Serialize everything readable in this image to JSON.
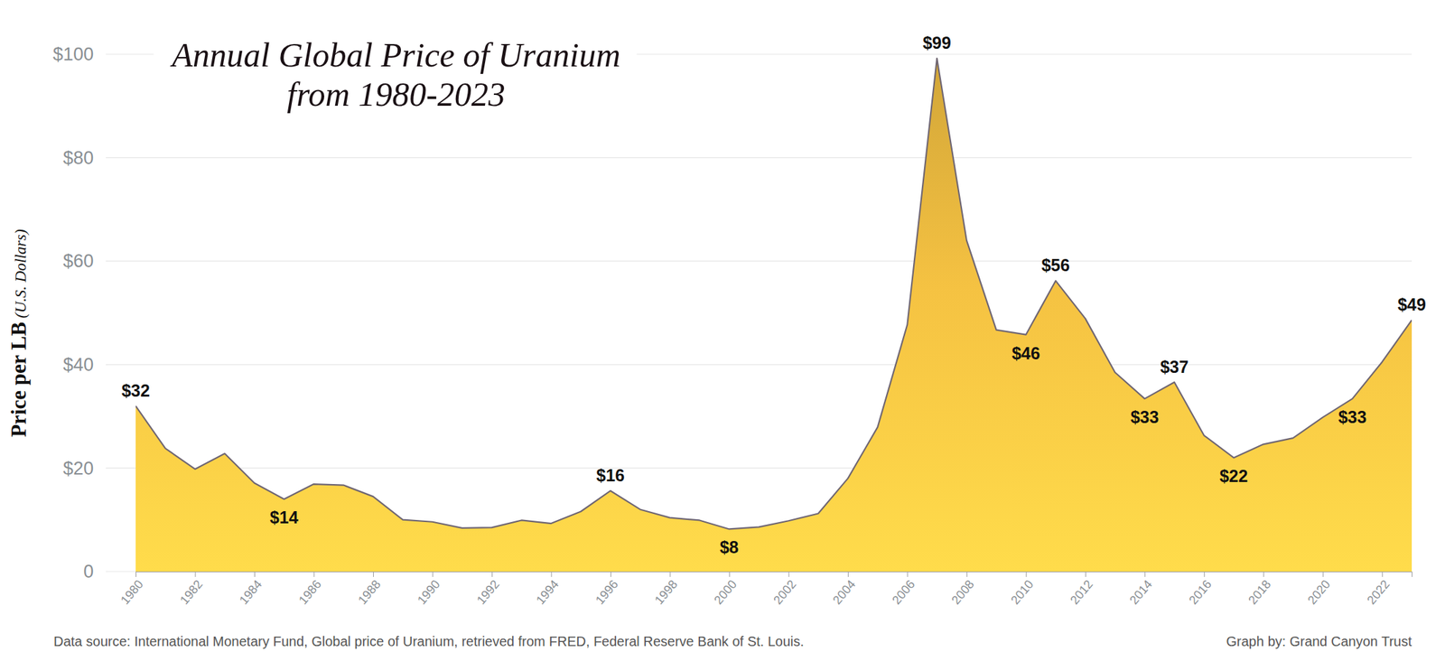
{
  "chart_data": {
    "type": "area",
    "title": "Annual Global Price of Uranium from 1980-2023",
    "ylabel": "Price per LB (U.S. Dollars)",
    "source": "Data source: International Monetary Fund, Global price of Uranium, retrieved from FRED, Federal Reserve Bank of St. Louis.",
    "credit": "Graph by: Grand Canyon Trust",
    "x": [
      1980,
      1981,
      1982,
      1983,
      1984,
      1985,
      1986,
      1987,
      1988,
      1989,
      1990,
      1991,
      1992,
      1993,
      1994,
      1995,
      1996,
      1997,
      1998,
      1999,
      2000,
      2001,
      2002,
      2003,
      2004,
      2005,
      2006,
      2007,
      2008,
      2009,
      2010,
      2011,
      2012,
      2013,
      2014,
      2015,
      2016,
      2017,
      2018,
      2019,
      2020,
      2021,
      2022,
      2023
    ],
    "values": [
      32,
      23.8,
      19.8,
      22.8,
      17.1,
      14,
      16.9,
      16.7,
      14.5,
      10,
      9.6,
      8.4,
      8.5,
      9.9,
      9.3,
      11.6,
      15.6,
      12,
      10.4,
      9.9,
      8.2,
      8.6,
      9.8,
      11.2,
      18,
      27.9,
      47.7,
      99.2,
      64,
      46.7,
      45.8,
      56.2,
      48.9,
      38.5,
      33.4,
      36.6,
      26.3,
      22,
      24.6,
      25.8,
      29.8,
      33.4,
      40.5,
      48.6
    ],
    "value_labels": [
      "$32",
      null,
      null,
      null,
      null,
      "$14",
      null,
      null,
      null,
      null,
      null,
      null,
      null,
      null,
      null,
      null,
      "$16",
      null,
      null,
      null,
      "$8",
      null,
      null,
      null,
      null,
      null,
      null,
      "$99",
      null,
      null,
      "$46",
      "$56",
      null,
      null,
      "$33",
      "$37",
      null,
      "$22",
      null,
      null,
      null,
      "$33",
      null,
      "$49"
    ],
    "data_labels": true,
    "color": "#f5c242",
    "xlim": [
      1980,
      2023
    ],
    "xticks": [
      1980,
      1982,
      1984,
      1986,
      1988,
      1990,
      1992,
      1994,
      1996,
      1998,
      2000,
      2002,
      2004,
      2006,
      2008,
      2010,
      2012,
      2014,
      2016,
      2018,
      2020,
      2022
    ],
    "ylim": [
      0,
      100
    ],
    "yticks": [
      0,
      {
        "value": 20,
        "label": "$20"
      },
      {
        "value": 40,
        "label": "$40"
      },
      {
        "value": 60,
        "label": "$60"
      },
      {
        "value": 80,
        "label": "$80"
      },
      {
        "value": 100,
        "label": "$100"
      }
    ],
    "grid": true
  }
}
